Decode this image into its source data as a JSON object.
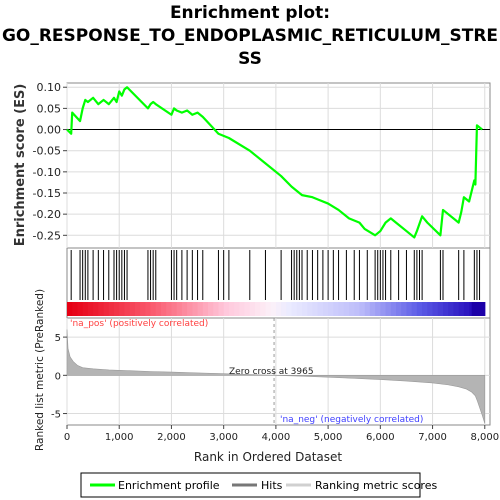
{
  "chart_data": {
    "type": "line",
    "title_lines": [
      "Enrichment plot:",
      "GO_RESPONSE_TO_ENDOPLASMIC_RETICULUM_STRE",
      "SS"
    ],
    "es_panel": {
      "ylabel": "Enrichment score (ES)",
      "ylim": [
        -0.28,
        0.11
      ],
      "yticks": [
        "0.10",
        "0.05",
        "0.00",
        "-0.05",
        "-0.10",
        "-0.15",
        "-0.20",
        "-0.25"
      ],
      "ytick_values": [
        0.1,
        0.05,
        0.0,
        -0.05,
        -0.1,
        -0.15,
        -0.2,
        -0.25
      ],
      "series": [
        {
          "name": "Enrichment profile",
          "color": "#00ff00",
          "x": [
            0,
            80,
            100,
            250,
            300,
            350,
            400,
            500,
            600,
            700,
            800,
            900,
            950,
            1000,
            1050,
            1100,
            1150,
            1550,
            1600,
            1650,
            1700,
            2000,
            2050,
            2100,
            2200,
            2300,
            2400,
            2500,
            2600,
            2900,
            3000,
            3100,
            3500,
            3800,
            4100,
            4300,
            4400,
            4500,
            4700,
            4800,
            5000,
            5200,
            5400,
            5600,
            5700,
            5900,
            6000,
            6100,
            6200,
            6300,
            6500,
            6650,
            6700,
            6800,
            6900,
            7150,
            7200,
            7500,
            7550,
            7600,
            7700,
            7800,
            7820,
            7850,
            7950
          ],
          "y": [
            0.0,
            -0.01,
            0.04,
            0.02,
            0.05,
            0.07,
            0.065,
            0.075,
            0.06,
            0.07,
            0.06,
            0.075,
            0.065,
            0.09,
            0.08,
            0.095,
            0.1,
            0.05,
            0.06,
            0.065,
            0.06,
            0.035,
            0.05,
            0.045,
            0.04,
            0.045,
            0.035,
            0.04,
            0.03,
            -0.01,
            -0.015,
            -0.02,
            -0.05,
            -0.08,
            -0.11,
            -0.135,
            -0.145,
            -0.155,
            -0.16,
            -0.165,
            -0.175,
            -0.19,
            -0.21,
            -0.22,
            -0.235,
            -0.25,
            -0.24,
            -0.22,
            -0.21,
            -0.22,
            -0.24,
            -0.255,
            -0.24,
            -0.205,
            -0.22,
            -0.25,
            -0.19,
            -0.22,
            -0.195,
            -0.16,
            -0.17,
            -0.12,
            -0.13,
            0.01,
            0.0
          ]
        }
      ]
    },
    "hits_panel": {
      "hit_positions": [
        80,
        250,
        300,
        350,
        400,
        500,
        600,
        700,
        800,
        900,
        950,
        1000,
        1050,
        1100,
        1150,
        1550,
        1600,
        1650,
        1700,
        2000,
        2050,
        2100,
        2200,
        2300,
        2400,
        2500,
        2600,
        2900,
        3000,
        3100,
        3500,
        3800,
        4100,
        4300,
        4350,
        4400,
        4450,
        4500,
        4600,
        4700,
        4800,
        4900,
        5000,
        5100,
        5200,
        5350,
        5500,
        5600,
        5750,
        5900,
        5950,
        6000,
        6050,
        6100,
        6200,
        6350,
        6500,
        6650,
        6700,
        6750,
        6800,
        7150,
        7200,
        7500,
        7600,
        7800,
        7850,
        7900
      ]
    },
    "metric_panel": {
      "ylabel": "Ranked list metric (PreRanked)",
      "ylim": [
        -6.5,
        7.5
      ],
      "yticks": [
        "5",
        "0",
        "-5"
      ],
      "ytick_values": [
        5,
        0,
        -5
      ],
      "zero_cross_label": "Zero cross at 3965",
      "zero_cross": 3965,
      "pos_label": "'na_pos' (positively correlated)",
      "neg_label": "'na_neg' (negatively correlated)",
      "x": [
        0,
        20,
        60,
        120,
        200,
        300,
        500,
        800,
        1200,
        1600,
        2000,
        2500,
        3000,
        3500,
        3965,
        4500,
        5000,
        5500,
        6000,
        6500,
        7000,
        7300,
        7500,
        7650,
        7750,
        7820,
        7860,
        7900,
        7950,
        8000
      ],
      "values": [
        6.0,
        3.5,
        2.4,
        1.8,
        1.3,
        1.0,
        0.85,
        0.7,
        0.6,
        0.5,
        0.42,
        0.32,
        0.22,
        0.1,
        0.0,
        -0.12,
        -0.25,
        -0.4,
        -0.55,
        -0.75,
        -1.0,
        -1.25,
        -1.5,
        -1.8,
        -2.2,
        -2.7,
        -3.4,
        -4.2,
        -5.2,
        -6.3
      ]
    },
    "xlabel": "Rank in Ordered Dataset",
    "xlim": [
      0,
      8100
    ],
    "xticks": [
      "0",
      "1,000",
      "2,000",
      "3,000",
      "4,000",
      "5,000",
      "6,000",
      "7,000",
      "8,000"
    ],
    "xtick_values": [
      0,
      1000,
      2000,
      3000,
      4000,
      5000,
      6000,
      7000,
      8000
    ],
    "legend": {
      "placement": "bottom",
      "entries": [
        {
          "label": "Enrichment profile",
          "color": "#00ff00"
        },
        {
          "label": "Hits",
          "color": "#777777"
        },
        {
          "label": "Ranking metric scores",
          "color": "#d0d0d0"
        }
      ]
    },
    "colors": {
      "es_line": "#00ff00",
      "pos_text": "#ff4040",
      "neg_text": "#4040ff",
      "metric_fill": "#b4b4b4",
      "grid": "#dcdcdc"
    }
  }
}
